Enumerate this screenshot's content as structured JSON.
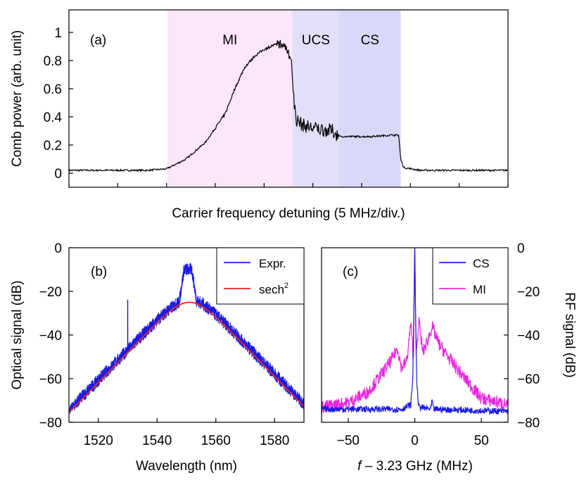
{
  "chart_data": [
    {
      "id": "a",
      "type": "line",
      "panel_label": "(a)",
      "xlabel": "Carrier frequency detuning (5 MHz/div.)",
      "ylabel": "Comb power (arb. unit)",
      "xlim": [
        0,
        45
      ],
      "ylim": [
        -0.1,
        1.16
      ],
      "x_ticks_count": 10,
      "yticks": [
        0,
        0.2,
        0.4,
        0.6,
        0.8,
        1
      ],
      "ytick_labels": [
        "0",
        "0.2",
        "0.4",
        "0.6",
        "0.8",
        "1"
      ],
      "regions": [
        {
          "label": "MI",
          "x0": 10.1,
          "x1": 22.9,
          "color": "#fce6fb"
        },
        {
          "label": "UCS",
          "x0": 22.9,
          "x1": 27.7,
          "color": "#e2e0f8"
        },
        {
          "label": "CS",
          "x0": 27.7,
          "x1": 34.0,
          "color": "#d8d8f8"
        }
      ],
      "series": [
        {
          "color": "#000000",
          "x": [
            0,
            4,
            8,
            10,
            12,
            14,
            16,
            17,
            18,
            19,
            20,
            21,
            21.5,
            22,
            22.4,
            22.8,
            23.0,
            23.3,
            24,
            25,
            26,
            27,
            27.7,
            29,
            31,
            33,
            33.8,
            34.0,
            34.3,
            36,
            40,
            45
          ],
          "y": [
            0.02,
            0.02,
            0.02,
            0.03,
            0.1,
            0.22,
            0.42,
            0.6,
            0.75,
            0.83,
            0.88,
            0.91,
            0.91,
            0.92,
            0.88,
            0.8,
            0.55,
            0.38,
            0.34,
            0.32,
            0.31,
            0.3,
            0.26,
            0.26,
            0.26,
            0.27,
            0.27,
            0.1,
            0.04,
            0.02,
            0.02,
            0.02
          ]
        }
      ]
    },
    {
      "id": "b",
      "type": "line",
      "panel_label": "(b)",
      "xlabel": "Wavelength (nm)",
      "ylabel": "Optical signal (dB)",
      "xlim": [
        1510,
        1590
      ],
      "ylim": [
        -80,
        0
      ],
      "xticks": [
        1520,
        1540,
        1560,
        1580
      ],
      "xtick_labels": [
        "1520",
        "1540",
        "1560",
        "1580"
      ],
      "yticks": [
        -80,
        -60,
        -40,
        -20,
        0
      ],
      "ytick_labels": [
        "−80",
        "−60",
        "−40",
        "−20",
        "0"
      ],
      "legend_position": "top-right",
      "series": [
        {
          "name": "Expr.",
          "color": "#1a1ae6",
          "center": 1550.5,
          "fwhm_like_width": 9.5,
          "peak_db": -10,
          "noise_floor_db": -75,
          "spike_x": 1530,
          "spike_peak_db": -24
        },
        {
          "name": "sech",
          "name_superscript": "2",
          "color": "#e8261e",
          "center": 1551,
          "peak_db": -25,
          "width_param": 6.3
        }
      ]
    },
    {
      "id": "c",
      "type": "line",
      "panel_label": "(c)",
      "xlabel_italic": "f",
      "xlabel": " – 3.23 GHz (MHz)",
      "ylabel": "RF signal (dB)",
      "xlim": [
        -70,
        70
      ],
      "ylim": [
        -80,
        0
      ],
      "xticks": [
        -50,
        0,
        50
      ],
      "xtick_labels": [
        "−50",
        "0",
        "50"
      ],
      "yticks": [
        -80,
        -60,
        -40,
        -20,
        0
      ],
      "ytick_labels": [
        "−80",
        "−60",
        "−40",
        "−20",
        "0"
      ],
      "y_axis_side": "right",
      "legend_position": "top-right",
      "series": [
        {
          "name": "MI",
          "color": "#ea24e0",
          "x": [
            -70,
            -50,
            -35,
            -25,
            -18,
            -13,
            -10,
            -6,
            -3,
            -1,
            0,
            1,
            3,
            6,
            10,
            13,
            18,
            25,
            35,
            50,
            70
          ],
          "y": [
            -73,
            -71,
            -66,
            -58,
            -52,
            -46,
            -55,
            -52,
            -35,
            -50,
            0,
            -50,
            -33,
            -48,
            -42,
            -36,
            -44,
            -50,
            -58,
            -69,
            -72
          ]
        },
        {
          "name": "CS",
          "color": "#1a1ae6",
          "x": [
            -70,
            -10,
            -3,
            -1.5,
            -0.5,
            0,
            0.5,
            1.5,
            3,
            12,
            13,
            14,
            70
          ],
          "y": [
            -74,
            -74,
            -72,
            -60,
            -20,
            0,
            -25,
            -62,
            -73,
            -74,
            -70,
            -74,
            -75
          ]
        }
      ]
    }
  ]
}
